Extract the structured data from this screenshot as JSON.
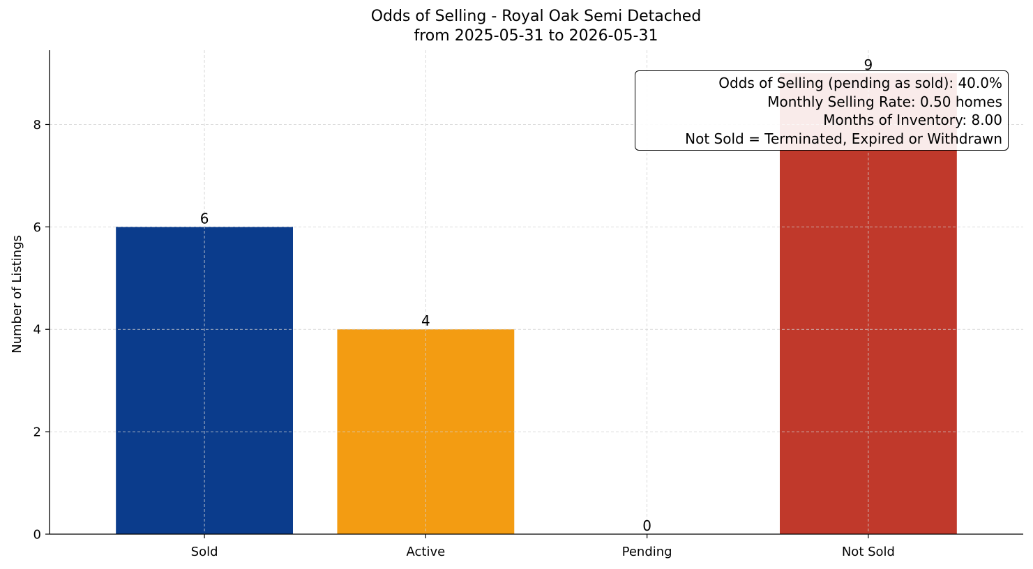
{
  "chart_data": {
    "type": "bar",
    "title": "Odds of Selling - Royal Oak Semi Detached",
    "subtitle": "from 2025-05-31 to 2026-05-31",
    "xlabel": "",
    "ylabel": "Number of Listings",
    "categories": [
      "Sold",
      "Active",
      "Pending",
      "Not Sold"
    ],
    "values": [
      6,
      4,
      0,
      9
    ],
    "data_labels": [
      "6",
      "4",
      "0",
      "9"
    ],
    "bar_colors": [
      "#0b3c8c",
      "#f39c12",
      "#7f7f7f",
      "#c0392b"
    ],
    "ylim": [
      0,
      9.45
    ],
    "yticks": [
      0,
      2,
      4,
      6,
      8
    ],
    "grid": true,
    "annotation": [
      "Odds of Selling (pending as sold): 40.0%",
      "Monthly Selling Rate: 0.50 homes",
      "Months of Inventory: 8.00",
      "Not Sold = Terminated, Expired or Withdrawn"
    ]
  }
}
